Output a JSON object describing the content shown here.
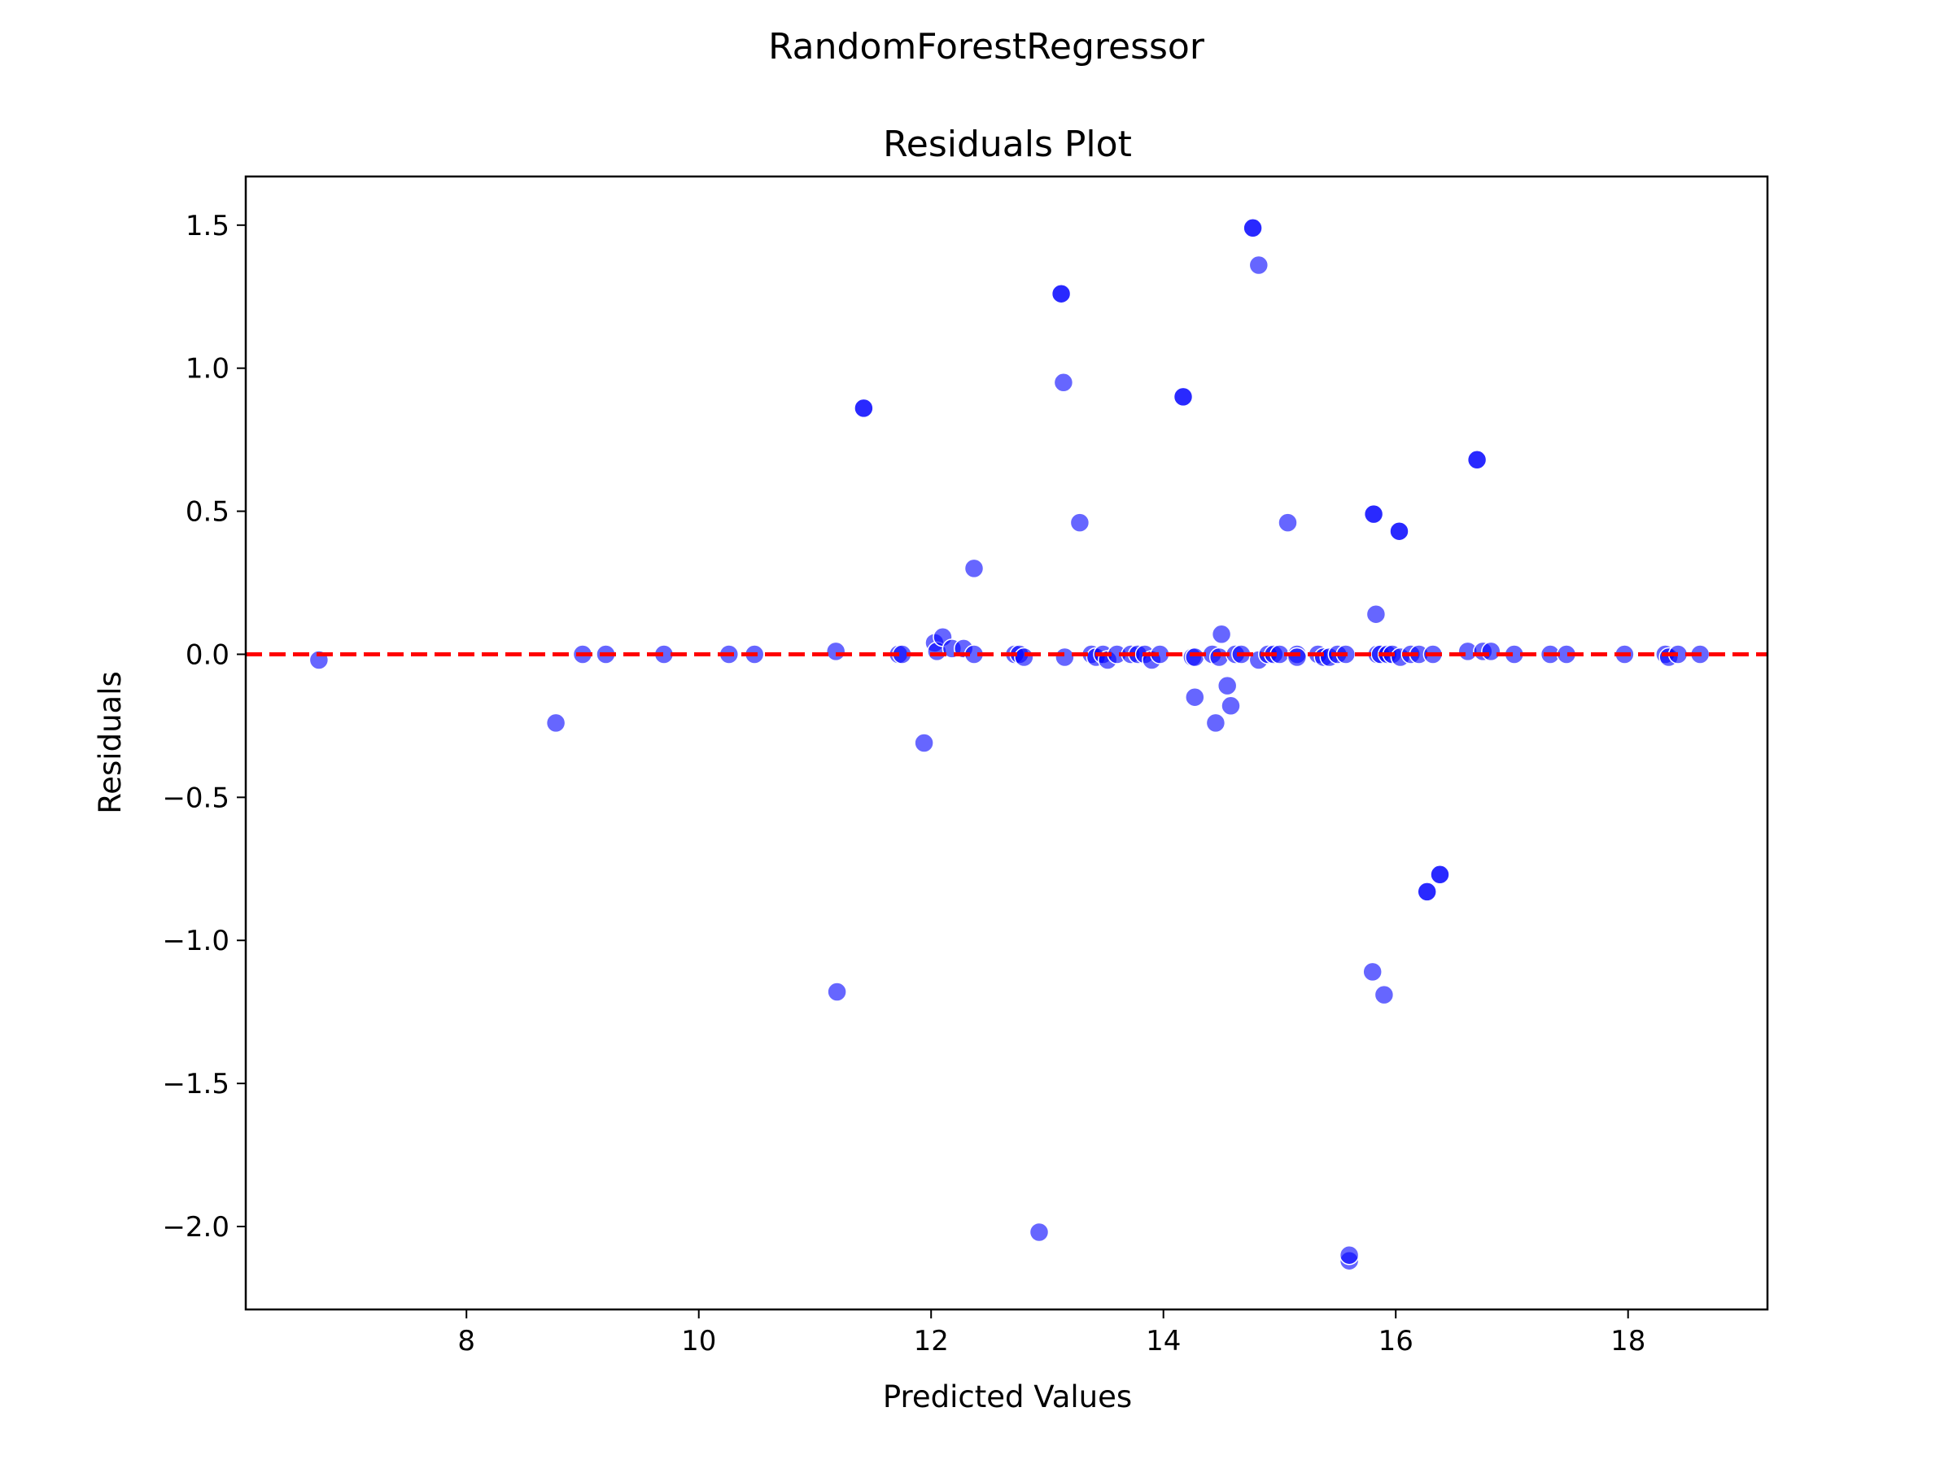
{
  "figure": {
    "suptitle": "RandomForestRegressor"
  },
  "chart_data": {
    "type": "scatter",
    "title": "Residuals Plot",
    "xlabel": "Predicted Values",
    "ylabel": "Residuals",
    "xlim": [
      6.1,
      19.2
    ],
    "ylim": [
      -2.29,
      1.67
    ],
    "xticks": [
      8,
      10,
      12,
      14,
      16,
      18
    ],
    "yticks": [
      1.5,
      1.0,
      0.5,
      0.0,
      -0.5,
      -1.0,
      -1.5,
      -2.0
    ],
    "xtick_labels": [
      "8",
      "10",
      "12",
      "14",
      "16",
      "18"
    ],
    "ytick_labels": [
      "1.5",
      "1.0",
      "0.5",
      "0.0",
      "−0.5",
      "−1.0",
      "−1.5",
      "−2.0"
    ],
    "reference_line": {
      "y": 0,
      "style": "dashed",
      "color": "#ff0000"
    },
    "marker_color": "#0000ff",
    "marker_opacity": 0.6,
    "grid": false,
    "points": [
      {
        "x": 6.73,
        "y": -0.02
      },
      {
        "x": 8.77,
        "y": -0.24
      },
      {
        "x": 9.0,
        "y": 0.0
      },
      {
        "x": 9.2,
        "y": 0.0
      },
      {
        "x": 9.7,
        "y": 0.0
      },
      {
        "x": 10.26,
        "y": 0.0
      },
      {
        "x": 10.48,
        "y": 0.0
      },
      {
        "x": 11.18,
        "y": 0.01
      },
      {
        "x": 11.19,
        "y": -1.18
      },
      {
        "x": 11.42,
        "y": 0.86
      },
      {
        "x": 11.42,
        "y": 0.86
      },
      {
        "x": 11.72,
        "y": 0.0
      },
      {
        "x": 11.75,
        "y": 0.0
      },
      {
        "x": 11.94,
        "y": -0.31
      },
      {
        "x": 12.03,
        "y": 0.04
      },
      {
        "x": 12.05,
        "y": 0.01
      },
      {
        "x": 12.1,
        "y": 0.06
      },
      {
        "x": 12.18,
        "y": 0.02
      },
      {
        "x": 12.28,
        "y": 0.02
      },
      {
        "x": 12.37,
        "y": 0.3
      },
      {
        "x": 12.37,
        "y": 0.0
      },
      {
        "x": 12.72,
        "y": 0.0
      },
      {
        "x": 12.76,
        "y": 0.0
      },
      {
        "x": 12.8,
        "y": -0.01
      },
      {
        "x": 12.93,
        "y": -2.02
      },
      {
        "x": 13.12,
        "y": 1.26
      },
      {
        "x": 13.12,
        "y": 1.26
      },
      {
        "x": 13.14,
        "y": 0.95
      },
      {
        "x": 13.15,
        "y": -0.01
      },
      {
        "x": 13.28,
        "y": 0.46
      },
      {
        "x": 13.38,
        "y": 0.0
      },
      {
        "x": 13.42,
        "y": -0.01
      },
      {
        "x": 13.48,
        "y": 0.0
      },
      {
        "x": 13.52,
        "y": -0.02
      },
      {
        "x": 13.6,
        "y": 0.0
      },
      {
        "x": 13.72,
        "y": 0.0
      },
      {
        "x": 13.78,
        "y": 0.0
      },
      {
        "x": 13.84,
        "y": 0.0
      },
      {
        "x": 13.9,
        "y": -0.02
      },
      {
        "x": 13.97,
        "y": 0.0
      },
      {
        "x": 14.17,
        "y": 0.9
      },
      {
        "x": 14.17,
        "y": 0.9
      },
      {
        "x": 14.25,
        "y": -0.01
      },
      {
        "x": 14.27,
        "y": -0.15
      },
      {
        "x": 14.27,
        "y": -0.01
      },
      {
        "x": 14.42,
        "y": 0.0
      },
      {
        "x": 14.45,
        "y": -0.24
      },
      {
        "x": 14.48,
        "y": -0.01
      },
      {
        "x": 14.5,
        "y": 0.07
      },
      {
        "x": 14.55,
        "y": -0.11
      },
      {
        "x": 14.58,
        "y": -0.18
      },
      {
        "x": 14.62,
        "y": 0.0
      },
      {
        "x": 14.67,
        "y": 0.0
      },
      {
        "x": 14.77,
        "y": 1.49
      },
      {
        "x": 14.77,
        "y": 1.49
      },
      {
        "x": 14.82,
        "y": 1.36
      },
      {
        "x": 14.82,
        "y": -0.02
      },
      {
        "x": 14.9,
        "y": 0.0
      },
      {
        "x": 14.95,
        "y": 0.0
      },
      {
        "x": 15.0,
        "y": 0.0
      },
      {
        "x": 15.07,
        "y": 0.46
      },
      {
        "x": 15.15,
        "y": 0.0
      },
      {
        "x": 15.15,
        "y": -0.01
      },
      {
        "x": 15.33,
        "y": 0.0
      },
      {
        "x": 15.38,
        "y": -0.01
      },
      {
        "x": 15.43,
        "y": -0.01
      },
      {
        "x": 15.5,
        "y": 0.0
      },
      {
        "x": 15.57,
        "y": 0.0
      },
      {
        "x": 15.6,
        "y": -2.12
      },
      {
        "x": 15.6,
        "y": -2.1
      },
      {
        "x": 15.8,
        "y": -1.11
      },
      {
        "x": 15.81,
        "y": 0.49
      },
      {
        "x": 15.81,
        "y": 0.49
      },
      {
        "x": 15.83,
        "y": 0.14
      },
      {
        "x": 15.84,
        "y": 0.0
      },
      {
        "x": 15.87,
        "y": 0.0
      },
      {
        "x": 15.9,
        "y": -1.19
      },
      {
        "x": 15.93,
        "y": 0.0
      },
      {
        "x": 15.97,
        "y": 0.0
      },
      {
        "x": 16.03,
        "y": 0.43
      },
      {
        "x": 16.03,
        "y": 0.43
      },
      {
        "x": 16.04,
        "y": -0.01
      },
      {
        "x": 16.13,
        "y": 0.0
      },
      {
        "x": 16.2,
        "y": 0.0
      },
      {
        "x": 16.27,
        "y": -0.83
      },
      {
        "x": 16.27,
        "y": -0.83
      },
      {
        "x": 16.32,
        "y": 0.0
      },
      {
        "x": 16.38,
        "y": -0.77
      },
      {
        "x": 16.38,
        "y": -0.77
      },
      {
        "x": 16.62,
        "y": 0.01
      },
      {
        "x": 16.7,
        "y": 0.68
      },
      {
        "x": 16.7,
        "y": 0.68
      },
      {
        "x": 16.75,
        "y": 0.01
      },
      {
        "x": 16.82,
        "y": 0.01
      },
      {
        "x": 17.02,
        "y": 0.0
      },
      {
        "x": 17.33,
        "y": 0.0
      },
      {
        "x": 17.47,
        "y": 0.0
      },
      {
        "x": 17.97,
        "y": 0.0
      },
      {
        "x": 18.32,
        "y": 0.0
      },
      {
        "x": 18.35,
        "y": -0.01
      },
      {
        "x": 18.43,
        "y": 0.0
      },
      {
        "x": 18.62,
        "y": 0.0
      }
    ]
  }
}
